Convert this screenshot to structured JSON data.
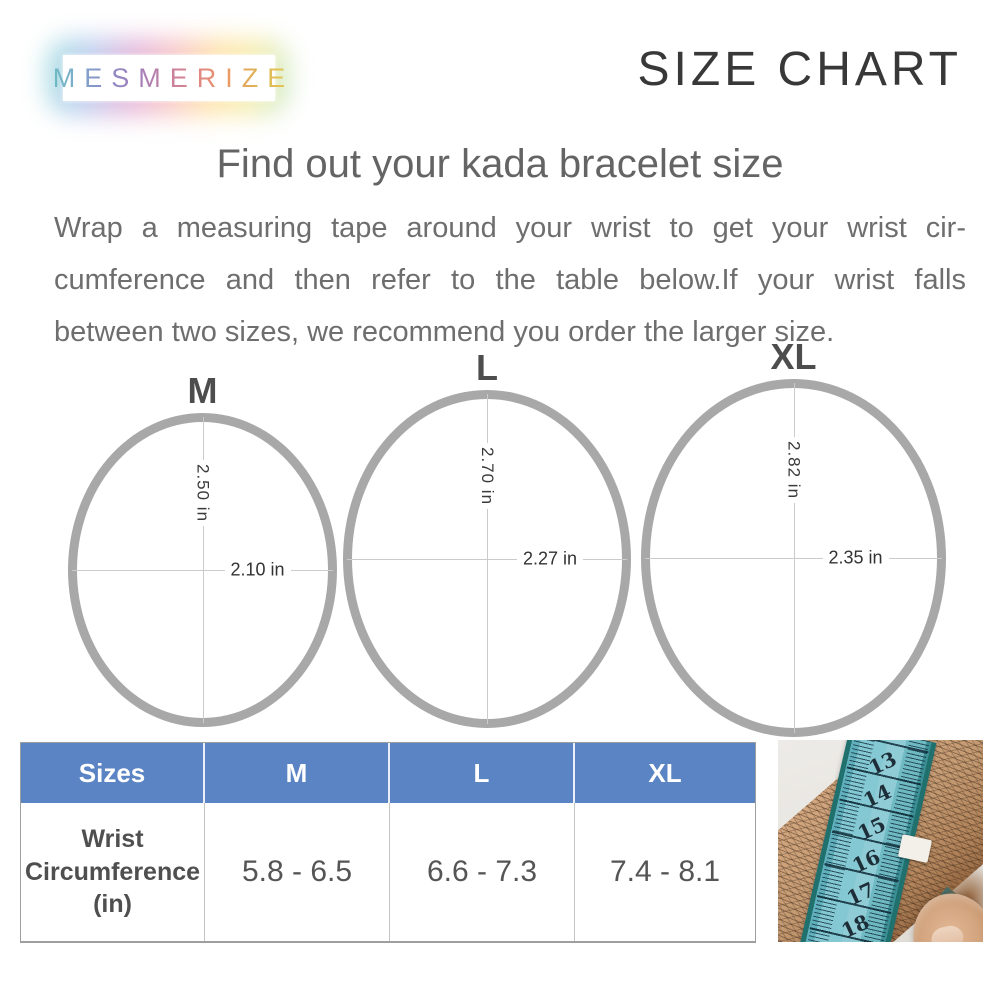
{
  "logo": {
    "text": "MESMERIZE"
  },
  "header": {
    "title": "SIZE CHART"
  },
  "intro": {
    "heading": "Find out your kada bracelet size",
    "lines": [
      "Wrap a measuring tape around your wrist to get your wrist cir-",
      "cumference and then refer to the table below.If your wrist falls",
      "between two sizes, we recommend you order the larger size."
    ]
  },
  "rings": [
    {
      "size": "M",
      "height_in": "2.50 in",
      "width_in": "2.10 in"
    },
    {
      "size": "L",
      "height_in": "2.70 in",
      "width_in": "2.27 in"
    },
    {
      "size": "XL",
      "height_in": "2.82 in",
      "width_in": "2.35 in"
    }
  ],
  "table": {
    "headers": [
      "Sizes",
      "M",
      "L",
      "XL"
    ],
    "row_label": "Wrist Circumference (in)",
    "values": [
      "5.8 - 6.5",
      "6.6 - 7.3",
      "7.4 - 8.1"
    ]
  },
  "photo": {
    "tape_numbers": [
      "13",
      "14",
      "15",
      "16",
      "17",
      "18"
    ]
  },
  "colors": {
    "header_blue": "#5b84c4",
    "ring_gray": "#a8a8a8",
    "text_gray": "#6e6e6e",
    "tape_teal": "#6fb9c3"
  }
}
